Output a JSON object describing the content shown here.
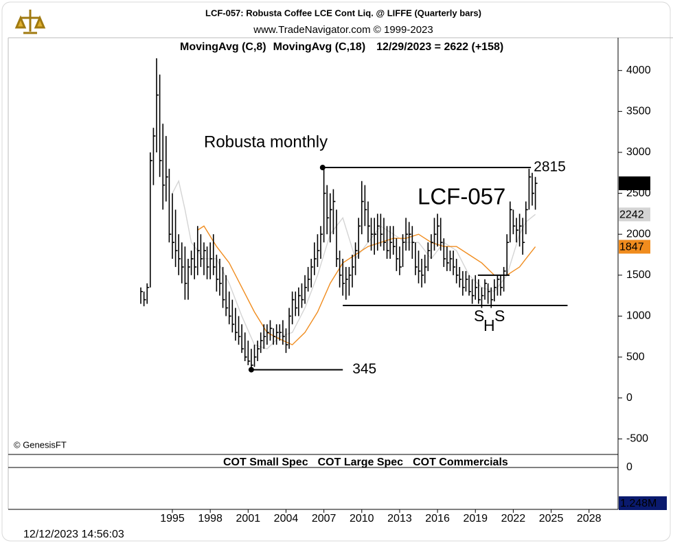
{
  "chart_data": {
    "type": "ohlc",
    "title": "LCF-057:  Robusta Coffee LCE Cont Liq. @ LIFFE  (Quarterly bars)",
    "subtitle": "www.TradeNavigator.com © 1999-2023",
    "status": "12/29/2023 = 2622 (+158)",
    "annotations": [
      "Robusta monthly",
      "LCF-057",
      "S",
      "H",
      "S"
    ],
    "copyright": "© GenesisFT",
    "timestamp": "12/12/2023 14:56:03",
    "xlim": [
      1982,
      2030.3
    ],
    "xticks": [
      1995,
      1998,
      2001,
      2004,
      2007,
      2010,
      2013,
      2016,
      2019,
      2022,
      2025,
      2028
    ],
    "ylim": [
      -690,
      4400
    ],
    "yticks": [
      -500,
      0,
      500,
      1000,
      1500,
      2000,
      2500,
      3000,
      3500,
      4000
    ],
    "color": "#000000",
    "x": [
      1992.5,
      1992.75,
      1993,
      1993.25,
      1993.5,
      1993.75,
      1994,
      1994.25,
      1994.5,
      1994.75,
      1995,
      1995.25,
      1995.5,
      1995.75,
      1996,
      1996.25,
      1996.5,
      1996.75,
      1997,
      1997.25,
      1997.5,
      1997.75,
      1998,
      1998.25,
      1998.5,
      1998.75,
      1999,
      1999.25,
      1999.5,
      1999.75,
      2000,
      2000.25,
      2000.5,
      2000.75,
      2001,
      2001.25,
      2001.5,
      2001.75,
      2002,
      2002.25,
      2002.5,
      2002.75,
      2003,
      2003.25,
      2003.5,
      2003.75,
      2004,
      2004.25,
      2004.5,
      2004.75,
      2005,
      2005.25,
      2005.5,
      2005.75,
      2006,
      2006.25,
      2006.5,
      2006.75,
      2007,
      2007.25,
      2007.5,
      2007.75,
      2008,
      2008.25,
      2008.5,
      2008.75,
      2009,
      2009.25,
      2009.5,
      2009.75,
      2010,
      2010.25,
      2010.5,
      2010.75,
      2011,
      2011.25,
      2011.5,
      2011.75,
      2012,
      2012.25,
      2012.5,
      2012.75,
      2013,
      2013.25,
      2013.5,
      2013.75,
      2014,
      2014.25,
      2014.5,
      2014.75,
      2015,
      2015.25,
      2015.5,
      2015.75,
      2016,
      2016.25,
      2016.5,
      2016.75,
      2017,
      2017.25,
      2017.5,
      2017.75,
      2018,
      2018.25,
      2018.5,
      2018.75,
      2019,
      2019.25,
      2019.5,
      2019.75,
      2020,
      2020.25,
      2020.5,
      2020.75,
      2021,
      2021.25,
      2021.5,
      2021.75,
      2022,
      2022.25,
      2022.5,
      2022.75,
      2023,
      2023.25,
      2023.5,
      2023.75
    ],
    "high": [
      1350,
      1300,
      1400,
      3000,
      3300,
      4150,
      3950,
      3350,
      3200,
      2800,
      2500,
      2300,
      2000,
      1900,
      1850,
      1700,
      1800,
      1900,
      2100,
      2000,
      1900,
      1850,
      1900,
      2000,
      1750,
      1700,
      1600,
      1500,
      1300,
      1200,
      1100,
      1000,
      900,
      800,
      700,
      600,
      650,
      700,
      800,
      900,
      900,
      950,
      850,
      900,
      900,
      950,
      850,
      1100,
      1300,
      1300,
      1350,
      1400,
      1500,
      1600,
      1700,
      1900,
      2000,
      2100,
      2815,
      2600,
      2500,
      2550,
      2300,
      1800,
      1700,
      1600,
      1600,
      1750,
      1900,
      2200,
      2650,
      2600,
      2400,
      2200,
      2200,
      2250,
      2250,
      2200,
      2100,
      2100,
      2100,
      1950,
      1850,
      2000,
      2200,
      2150,
      2100,
      1900,
      1800,
      1700,
      1750,
      1900,
      2000,
      2200,
      2250,
      2200,
      1950,
      1850,
      1800,
      1800,
      1700,
      1600,
      1550,
      1550,
      1500,
      1450,
      1500,
      1450,
      1350,
      1450,
      1400,
      1350,
      1450,
      1500,
      1500,
      1600,
      2000,
      2400,
      2300,
      2200,
      2250,
      2200,
      2400,
      2800,
      2750,
      2700
    ],
    "low": [
      1150,
      1120,
      1150,
      1350,
      2600,
      3000,
      2700,
      2300,
      2400,
      1900,
      1700,
      1600,
      1500,
      1400,
      1200,
      1200,
      1500,
      1450,
      1500,
      1600,
      1500,
      1450,
      1450,
      1500,
      1300,
      1250,
      1100,
      1000,
      900,
      800,
      700,
      650,
      550,
      450,
      400,
      345,
      380,
      450,
      550,
      600,
      650,
      700,
      650,
      650,
      700,
      650,
      550,
      600,
      900,
      1000,
      1000,
      1100,
      1150,
      1300,
      1350,
      1500,
      1600,
      1700,
      1900,
      2000,
      1900,
      2000,
      1600,
      1350,
      1250,
      1200,
      1250,
      1350,
      1500,
      1700,
      2000,
      2100,
      1900,
      1800,
      1750,
      1800,
      1850,
      1800,
      1700,
      1700,
      1750,
      1550,
      1500,
      1600,
      1800,
      1800,
      1700,
      1500,
      1400,
      1350,
      1400,
      1550,
      1700,
      1800,
      1850,
      1800,
      1600,
      1550,
      1550,
      1500,
      1400,
      1350,
      1250,
      1300,
      1250,
      1150,
      1200,
      1150,
      1100,
      1200,
      1150,
      1100,
      1180,
      1250,
      1250,
      1300,
      1500,
      1900,
      2000,
      1900,
      1850,
      1750,
      2000,
      2300,
      2350,
      2300
    ],
    "close": [
      1300,
      1200,
      1350,
      2900,
      3200,
      3700,
      2900,
      2600,
      2700,
      2000,
      1900,
      1800,
      1700,
      1600,
      1400,
      1600,
      1700,
      1600,
      1800,
      1700,
      1800,
      1600,
      1700,
      1600,
      1450,
      1400,
      1200,
      1100,
      1000,
      900,
      800,
      750,
      600,
      500,
      450,
      400,
      500,
      600,
      700,
      750,
      800,
      850,
      750,
      800,
      800,
      750,
      650,
      1000,
      1200,
      1100,
      1250,
      1200,
      1350,
      1450,
      1600,
      1700,
      1800,
      2000,
      2500,
      2200,
      2300,
      2400,
      1700,
      1500,
      1400,
      1450,
      1500,
      1600,
      1800,
      2100,
      2400,
      2300,
      2100,
      2000,
      2000,
      2100,
      2000,
      1900,
      1800,
      1900,
      1850,
      1700,
      1600,
      1900,
      2000,
      2000,
      1900,
      1600,
      1550,
      1500,
      1600,
      1800,
      1900,
      2000,
      2100,
      1900,
      1700,
      1650,
      1700,
      1600,
      1500,
      1450,
      1350,
      1450,
      1300,
      1250,
      1350,
      1200,
      1250,
      1400,
      1300,
      1200,
      1350,
      1450,
      1350,
      1550,
      1900,
      2300,
      2100,
      2050,
      2100,
      1900,
      2300,
      2700,
      2500,
      2622
    ],
    "series": [
      {
        "name": "MovingAvg (C,8)",
        "color": "#d4d4d4",
        "x": [
          1995,
          1995.5,
          1996,
          1996.5,
          1997.5,
          1998.5,
          1999.5,
          2000.5,
          2001.5,
          2002.5,
          2003.5,
          2004.5,
          2005.5,
          2006.5,
          2007.5,
          2008.5,
          2009.5,
          2010.5,
          2011.5,
          2012.5,
          2013.5,
          2014.5,
          2015.5,
          2016.5,
          2017.5,
          2018.5,
          2019.5,
          2020.5,
          2021.5,
          2022.5,
          2023,
          2023.75
        ],
        "values": [
          2500,
          2650,
          2300,
          1900,
          1700,
          1700,
          1400,
          1000,
          650,
          600,
          750,
          800,
          1100,
          1500,
          2000,
          2200,
          1700,
          1900,
          2100,
          2000,
          1900,
          1900,
          1700,
          1900,
          1800,
          1500,
          1350,
          1300,
          1500,
          2000,
          2150,
          2242
        ]
      },
      {
        "name": "MovingAvg (C,18)",
        "color": "#f08c1e",
        "x": [
          1997,
          1997.5,
          1998.5,
          1999.5,
          2000.5,
          2001.5,
          2002.5,
          2003.5,
          2004.5,
          2005.5,
          2006.5,
          2007.5,
          2008.5,
          2009.5,
          2010.5,
          2011.5,
          2012.5,
          2013.5,
          2014.5,
          2015.5,
          2016.5,
          2017.5,
          2018.5,
          2019.5,
          2020.5,
          2021.5,
          2022.5,
          2023,
          2023.75
        ],
        "values": [
          2050,
          2100,
          1850,
          1650,
          1350,
          1050,
          800,
          720,
          650,
          800,
          1050,
          1400,
          1650,
          1750,
          1850,
          1900,
          1950,
          1950,
          2000,
          1900,
          1850,
          1850,
          1750,
          1650,
          1500,
          1500,
          1600,
          1700,
          1847
        ]
      }
    ],
    "lines": [
      {
        "x": [
          2006.9,
          2023.4
        ],
        "y": 2815
      },
      {
        "x": [
          2008.5,
          2026.3
        ],
        "y": 1130
      },
      {
        "x": [
          2019.2,
          2021.7
        ],
        "y": 1500
      },
      {
        "x": [
          2001.25,
          2008.5
        ],
        "y": 345
      }
    ],
    "cot": {
      "legend": [
        {
          "name": "COT Small Spec",
          "color": "#b4b4b4"
        },
        {
          "name": "COT Large Spec",
          "color": "#000000"
        },
        {
          "name": "COT Commercials",
          "color": "#e01010"
        }
      ],
      "ytick": 0,
      "tag": "1.248M"
    }
  }
}
